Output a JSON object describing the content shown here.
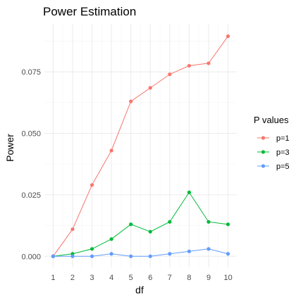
{
  "chart_data": {
    "type": "line",
    "title": "Power Estimation",
    "xlabel": "df",
    "ylabel": "Power",
    "x": [
      1,
      2,
      3,
      4,
      5,
      6,
      7,
      8,
      9,
      10
    ],
    "xlim": [
      1,
      10
    ],
    "ylim": [
      0,
      0.09
    ],
    "yticks": [
      "0.000",
      "0.025",
      "0.050",
      "0.075"
    ],
    "ytick_values": [
      0,
      0.025,
      0.05,
      0.075
    ],
    "xticks": [
      "1",
      "2",
      "3",
      "4",
      "5",
      "6",
      "7",
      "8",
      "9",
      "10"
    ],
    "grid": true,
    "legend": {
      "title": "P values",
      "position": "right"
    },
    "series": [
      {
        "name": "p=1",
        "color": "#F8766D",
        "values": [
          0.0,
          0.011,
          0.029,
          0.043,
          0.063,
          0.0685,
          0.074,
          0.0775,
          0.0785,
          0.0895
        ]
      },
      {
        "name": "p=3",
        "color": "#00BA38",
        "values": [
          0.0,
          0.001,
          0.003,
          0.007,
          0.013,
          0.01,
          0.014,
          0.026,
          0.014,
          0.013
        ]
      },
      {
        "name": "p=5",
        "color": "#619CFF",
        "values": [
          0.0,
          0.0,
          0.0,
          0.001,
          0.0,
          0.0,
          0.001,
          0.002,
          0.003,
          0.001
        ]
      }
    ]
  }
}
